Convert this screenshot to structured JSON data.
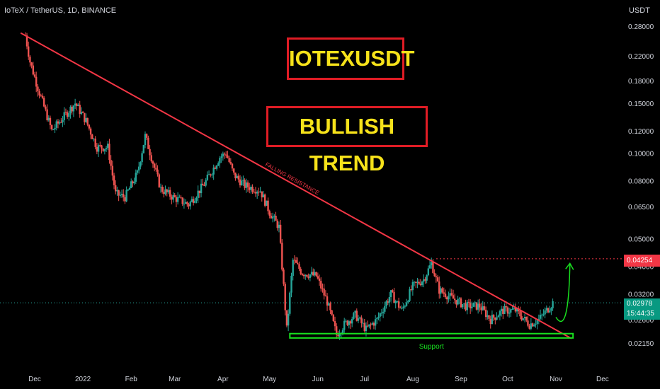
{
  "header": {
    "symbol_info": "IoTeX / TetherUS, 1D, BINANCE",
    "currency": "USDT"
  },
  "annotations": {
    "ticker_box": "IOTEXUSDT",
    "trend_box": "BULLISH TREND",
    "falling_resistance": "FALLING RESISTANCE",
    "support": "Support"
  },
  "price_tags": {
    "resistance_level": "0.04254",
    "last_price": "0.02978",
    "countdown": "15:44:35"
  },
  "colors": {
    "background": "#000000",
    "up_candle": "#26a69a",
    "down_candle": "#ef5350",
    "trendline": "#f23645",
    "support_box": "#18e01f",
    "title_text": "#f6e21a",
    "title_border": "#e01c25",
    "last_price_tag": "#089981"
  },
  "chart_data": {
    "type": "candlestick",
    "y_scale": "log",
    "ylim": [
      0.0195,
      0.33
    ],
    "y_ticks": [
      "0.28000",
      "0.22000",
      "0.18000",
      "0.15000",
      "0.12000",
      "0.10000",
      "0.08000",
      "0.06500",
      "0.05000",
      "0.04000",
      "0.03200",
      "0.02600",
      "0.02150"
    ],
    "x_ticks": [
      "Dec",
      "2022",
      "Feb",
      "Mar",
      "Apr",
      "May",
      "Jun",
      "Jul",
      "Aug",
      "Sep",
      "Oct",
      "Nov",
      "Dec"
    ],
    "price_path": [
      [
        "2021-11-25",
        0.26
      ],
      [
        "2021-11-28",
        0.21
      ],
      [
        "2021-12-03",
        0.17
      ],
      [
        "2021-12-08",
        0.14
      ],
      [
        "2021-12-12",
        0.12
      ],
      [
        "2021-12-20",
        0.135
      ],
      [
        "2021-12-27",
        0.15
      ],
      [
        "2022-01-03",
        0.13
      ],
      [
        "2022-01-10",
        0.105
      ],
      [
        "2022-01-17",
        0.105
      ],
      [
        "2022-01-22",
        0.072
      ],
      [
        "2022-01-28",
        0.07
      ],
      [
        "2022-02-05",
        0.085
      ],
      [
        "2022-02-10",
        0.115
      ],
      [
        "2022-02-20",
        0.075
      ],
      [
        "2022-02-28",
        0.07
      ],
      [
        "2022-03-10",
        0.066
      ],
      [
        "2022-03-20",
        0.078
      ],
      [
        "2022-03-30",
        0.097
      ],
      [
        "2022-04-03",
        0.1
      ],
      [
        "2022-04-08",
        0.084
      ],
      [
        "2022-04-15",
        0.077
      ],
      [
        "2022-04-25",
        0.074
      ],
      [
        "2022-05-01",
        0.062
      ],
      [
        "2022-05-07",
        0.055
      ],
      [
        "2022-05-10",
        0.034
      ],
      [
        "2022-05-12",
        0.024
      ],
      [
        "2022-05-16",
        0.042
      ],
      [
        "2022-05-22",
        0.038
      ],
      [
        "2022-05-31",
        0.037
      ],
      [
        "2022-06-07",
        0.03
      ],
      [
        "2022-06-13",
        0.023
      ],
      [
        "2022-06-18",
        0.025
      ],
      [
        "2022-06-25",
        0.027
      ],
      [
        "2022-07-02",
        0.024
      ],
      [
        "2022-07-09",
        0.026
      ],
      [
        "2022-07-18",
        0.032
      ],
      [
        "2022-07-25",
        0.028
      ],
      [
        "2022-08-01",
        0.034
      ],
      [
        "2022-08-08",
        0.036
      ],
      [
        "2022-08-13",
        0.041
      ],
      [
        "2022-08-18",
        0.033
      ],
      [
        "2022-08-26",
        0.031
      ],
      [
        "2022-09-04",
        0.029
      ],
      [
        "2022-09-13",
        0.029
      ],
      [
        "2022-09-20",
        0.026
      ],
      [
        "2022-09-28",
        0.028
      ],
      [
        "2022-10-06",
        0.028
      ],
      [
        "2022-10-15",
        0.025
      ],
      [
        "2022-10-21",
        0.026
      ],
      [
        "2022-10-26",
        0.028
      ],
      [
        "2022-10-30",
        0.0298
      ]
    ],
    "trendline": {
      "start": [
        "2021-11-22",
        0.265
      ],
      "end": [
        "2022-11-11",
        0.0223
      ],
      "label": "FALLING RESISTANCE"
    },
    "resistance_level": 0.04254,
    "last_price": 0.02978,
    "support_zone": {
      "y_range": [
        0.0224,
        0.0232
      ],
      "x_range": [
        "2022-05-14",
        "2022-11-12"
      ],
      "label": "Support"
    },
    "projection_arrow": {
      "from": [
        "2022-11-01",
        0.0265
      ],
      "to": [
        "2022-11-10",
        0.041
      ]
    }
  }
}
